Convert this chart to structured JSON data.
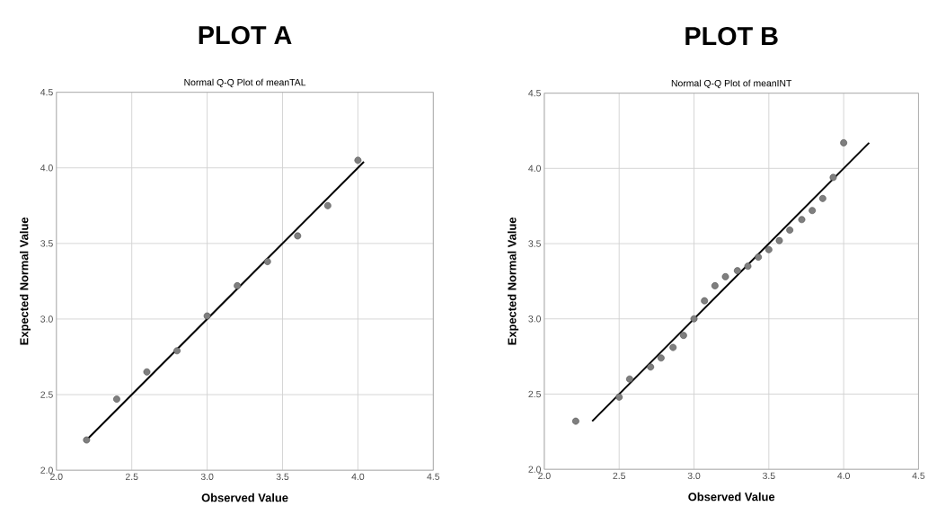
{
  "chart_data": [
    {
      "type": "scatter",
      "title": "PLOT A",
      "subtitle": "Normal Q-Q Plot of meanTAL",
      "xlabel": "Observed Value",
      "ylabel": "Expected Normal Value",
      "xlim": [
        2.0,
        4.5
      ],
      "ylim": [
        2.0,
        4.5
      ],
      "xticks": [
        {
          "value": 2.0,
          "label": "2.0"
        },
        {
          "value": 2.5,
          "label": "2.5"
        },
        {
          "value": 3.0,
          "label": "3.0"
        },
        {
          "value": 3.5,
          "label": "3.5"
        },
        {
          "value": 4.0,
          "label": "4.0"
        },
        {
          "value": 4.5,
          "label": "4.5"
        }
      ],
      "yticks": [
        {
          "value": 2.0,
          "label": "2.0"
        },
        {
          "value": 2.5,
          "label": "2.5"
        },
        {
          "value": 3.0,
          "label": "3.0"
        },
        {
          "value": 3.5,
          "label": "3.5"
        },
        {
          "value": 4.0,
          "label": "4.0"
        },
        {
          "value": 4.5,
          "label": "4.5"
        }
      ],
      "grid": true,
      "marker": "circle",
      "series": [
        {
          "type": "scatter",
          "color": "#7f7f7f",
          "x": [
            2.2,
            2.4,
            2.6,
            2.8,
            3.0,
            3.2,
            3.4,
            3.6,
            3.8,
            4.0
          ],
          "values": [
            2.2,
            2.47,
            2.65,
            2.79,
            3.02,
            3.22,
            3.38,
            3.55,
            3.75,
            4.05
          ]
        },
        {
          "type": "line",
          "marker": "none",
          "color": "#000000",
          "x": [
            2.2,
            4.04
          ],
          "values": [
            2.2,
            4.04
          ]
        }
      ]
    },
    {
      "type": "scatter",
      "title": "PLOT B",
      "subtitle": "Normal Q-Q Plot of meanINT",
      "xlabel": "Observed Value",
      "ylabel": "Expected Normal Value",
      "xlim": [
        2.0,
        4.5
      ],
      "ylim": [
        2.0,
        4.5
      ],
      "xticks": [
        {
          "value": 2.0,
          "label": "2.0"
        },
        {
          "value": 2.5,
          "label": "2.5"
        },
        {
          "value": 3.0,
          "label": "3.0"
        },
        {
          "value": 3.5,
          "label": "3.5"
        },
        {
          "value": 4.0,
          "label": "4.0"
        },
        {
          "value": 4.5,
          "label": "4.5"
        }
      ],
      "yticks": [
        {
          "value": 2.0,
          "label": "2.0"
        },
        {
          "value": 2.5,
          "label": "2.5"
        },
        {
          "value": 3.0,
          "label": "3.0"
        },
        {
          "value": 3.5,
          "label": "3.5"
        },
        {
          "value": 4.0,
          "label": "4.0"
        },
        {
          "value": 4.5,
          "label": "4.5"
        }
      ],
      "grid": true,
      "marker": "circle",
      "series": [
        {
          "type": "scatter",
          "color": "#7f7f7f",
          "x": [
            2.21,
            2.5,
            2.57,
            2.71,
            2.78,
            2.86,
            2.93,
            3.0,
            3.07,
            3.14,
            3.21,
            3.29,
            3.36,
            3.43,
            3.5,
            3.57,
            3.64,
            3.72,
            3.79,
            3.86,
            3.93,
            4.0
          ],
          "values": [
            2.32,
            2.48,
            2.6,
            2.68,
            2.74,
            2.81,
            2.89,
            3.0,
            3.12,
            3.22,
            3.28,
            3.32,
            3.35,
            3.41,
            3.46,
            3.52,
            3.59,
            3.66,
            3.72,
            3.8,
            3.94,
            4.17
          ]
        },
        {
          "type": "line",
          "marker": "none",
          "color": "#000000",
          "x": [
            2.32,
            4.17
          ],
          "values": [
            2.32,
            4.17
          ]
        }
      ]
    }
  ]
}
